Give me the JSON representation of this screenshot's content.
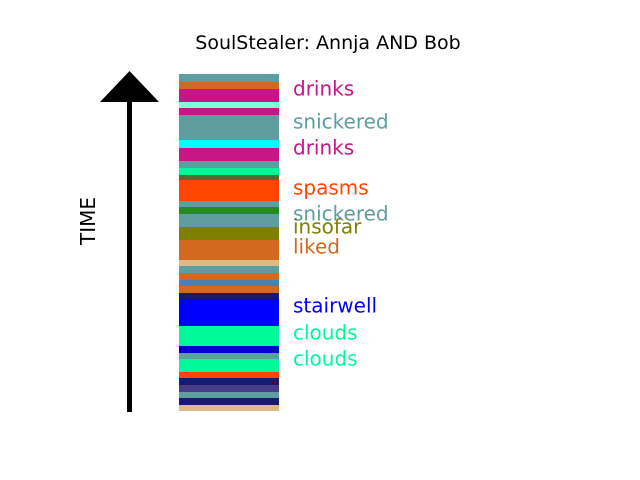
{
  "chart_data": {
    "type": "bar",
    "title": "SoulStealer: Annja AND Bob",
    "ylabel": "TIME",
    "segments": [
      {
        "color": "#5f9ea0"
      },
      {
        "color": "#d2691e"
      },
      {
        "color": "#c71585"
      },
      {
        "color": "#7fffd4"
      },
      {
        "color": "#c71585"
      },
      {
        "color": "#5f9ea0"
      },
      {
        "color": "#00ffff"
      },
      {
        "color": "#c71585"
      },
      {
        "color": "#5f9ea0"
      },
      {
        "color": "#00fa9a"
      },
      {
        "color": "#556b2f"
      },
      {
        "color": "#ff4500"
      },
      {
        "color": "#5f9ea0"
      },
      {
        "color": "#228b22"
      },
      {
        "color": "#5f9ea0"
      },
      {
        "color": "#808000"
      },
      {
        "color": "#d2691e"
      },
      {
        "color": "#deb887"
      },
      {
        "color": "#5f9ea0"
      },
      {
        "color": "#d2691e"
      },
      {
        "color": "#4682b4"
      },
      {
        "color": "#d2691e"
      },
      {
        "color": "#191970"
      },
      {
        "color": "#0000ff"
      },
      {
        "color": "#00fa9a"
      },
      {
        "color": "#0000cd"
      },
      {
        "color": "#5f9ea0"
      },
      {
        "color": "#00fa9a"
      },
      {
        "color": "#ff4500"
      },
      {
        "color": "#191970"
      },
      {
        "color": "#483d8b"
      },
      {
        "color": "#5f9ea0"
      },
      {
        "color": "#191970"
      },
      {
        "color": "#deb887"
      }
    ],
    "labels": [
      {
        "text": "drinks",
        "color": "#c71585"
      },
      {
        "text": "snickered",
        "color": "#5f9ea0"
      },
      {
        "text": "drinks",
        "color": "#c71585"
      },
      {
        "text": "spasms",
        "color": "#ff4500"
      },
      {
        "text": "snickered",
        "color": "#5f9ea0"
      },
      {
        "text": "insofar",
        "color": "#808000"
      },
      {
        "text": "liked",
        "color": "#d2691e"
      },
      {
        "text": "stairwell",
        "color": "#0000ff"
      },
      {
        "text": "clouds",
        "color": "#00fa9a"
      },
      {
        "text": "clouds",
        "color": "#00fa9a"
      }
    ]
  }
}
